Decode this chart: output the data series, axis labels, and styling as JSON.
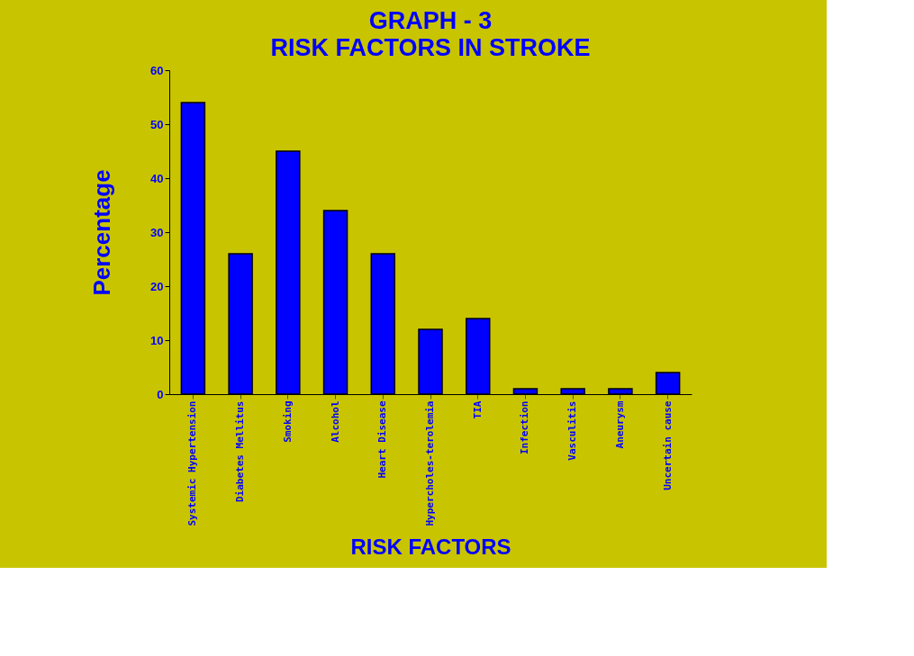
{
  "chart_data": {
    "type": "bar",
    "title": "GRAPH - 3",
    "subtitle": "RISK FACTORS IN STROKE",
    "xlabel": "RISK FACTORS",
    "ylabel": "Percentage",
    "categories": [
      "Systemic Hypertension",
      "Diabetes Mellitus",
      "Smoking",
      "Alcohol",
      "Heart Disease",
      "Hypercholes-terolemia",
      "TIA",
      "Infection",
      "Vasculitis",
      "Aneurysm",
      "Uncertain cause"
    ],
    "values": [
      54,
      26,
      45,
      34,
      26,
      12,
      14,
      1,
      1,
      1,
      4
    ],
    "color": "#0000ff",
    "ylim": [
      0,
      60
    ],
    "yticks": [
      0,
      10,
      20,
      30,
      40,
      50,
      60
    ],
    "grid": false
  }
}
